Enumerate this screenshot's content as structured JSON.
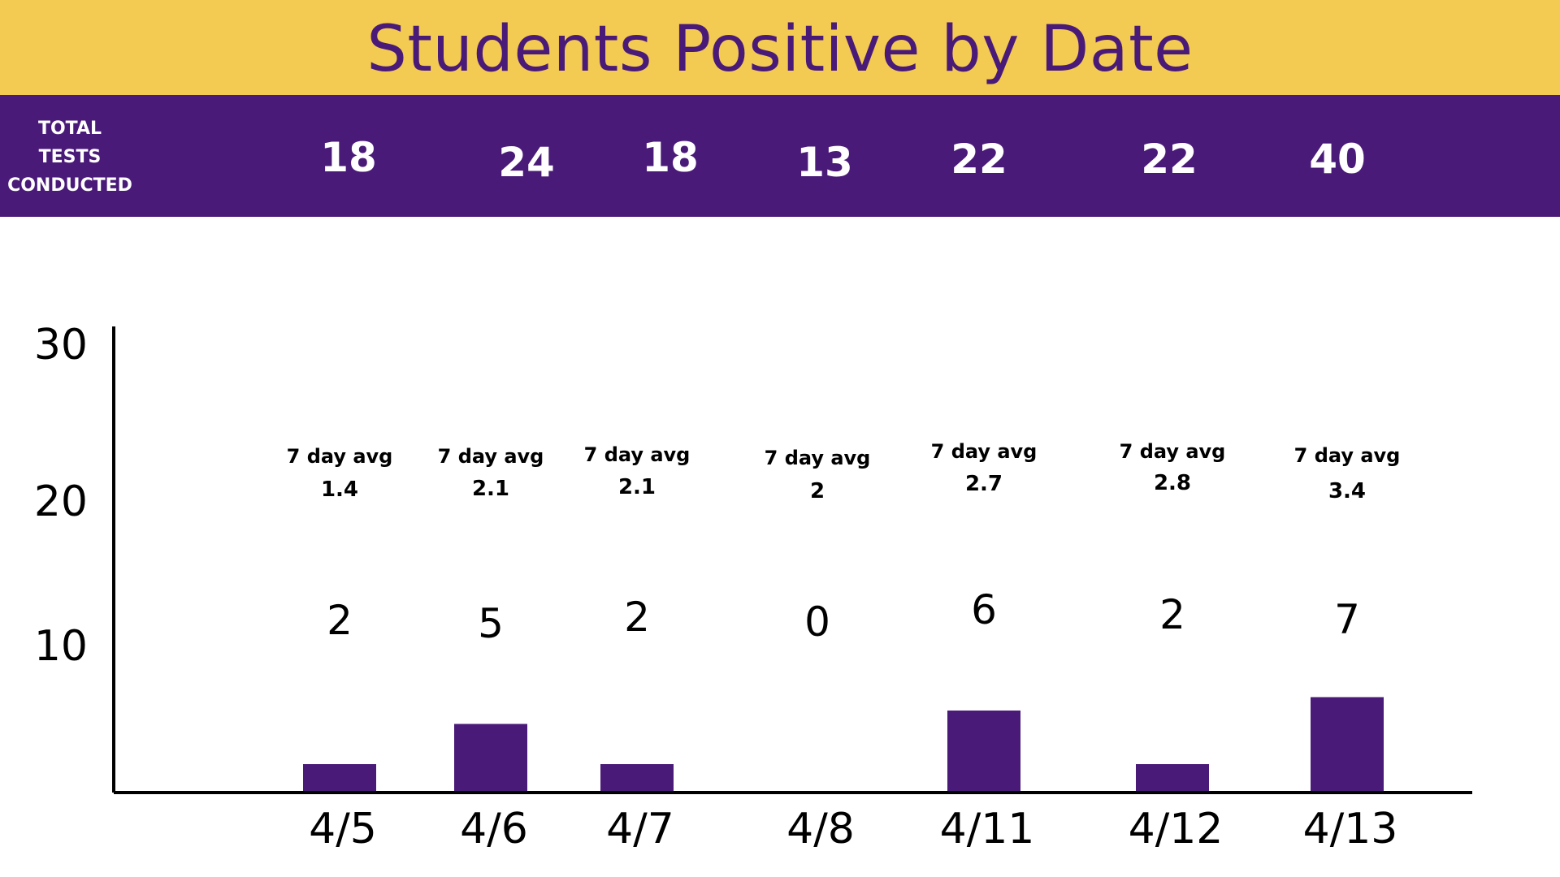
{
  "header": {
    "title": "Students Positive by Date",
    "title_bg_color": "#f3ca52",
    "title_text_color": "#4a1a78"
  },
  "tests": {
    "label_lines": [
      "TOTAL",
      "TESTS",
      "CONDUCTED"
    ],
    "band_color": "#4a1a78",
    "counts": [
      "18",
      "24",
      "18",
      "13",
      "22",
      "22",
      "40"
    ]
  },
  "chart_data": {
    "type": "bar",
    "title": "Students Positive by Date",
    "categories": [
      "4/5",
      "4/6",
      "4/7",
      "4/8",
      "4/11",
      "4/12",
      "4/13"
    ],
    "values": [
      2,
      5,
      2,
      0,
      6,
      2,
      7
    ],
    "value_labels": [
      "2",
      "5",
      "2",
      "0",
      "6",
      "2",
      "7"
    ],
    "avg_label": "7 day avg",
    "seven_day_avg": [
      "1.4",
      "2.1",
      "2.1",
      "2",
      "2.7",
      "2.8",
      "3.4"
    ],
    "y_ticks": [
      "30",
      "20",
      "10"
    ],
    "ylim": [
      0,
      30
    ],
    "bar_color": "#4a1a78",
    "grid": false,
    "legend": "none",
    "xlabel": "",
    "ylabel": ""
  }
}
